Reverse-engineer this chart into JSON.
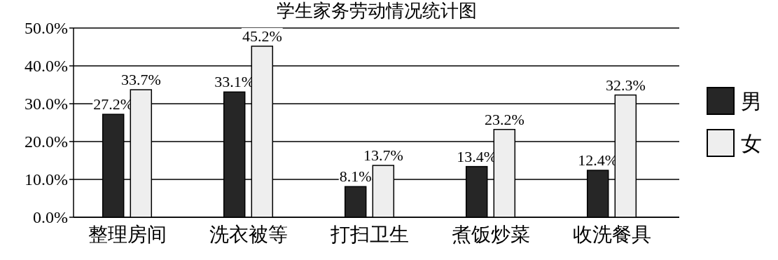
{
  "chart_data": {
    "type": "bar",
    "title": "学生家务劳动情况统计图",
    "categories": [
      "整理房间",
      "洗衣被等",
      "打扫卫生",
      "煮饭炒菜",
      "收洗餐具"
    ],
    "series": [
      {
        "name": "男",
        "color": "#262626",
        "values": [
          27.2,
          33.1,
          8.1,
          13.4,
          12.4
        ],
        "value_labels": [
          "27.2%",
          "33.1%",
          "8.1%",
          "13.4%",
          "12.4%"
        ]
      },
      {
        "name": "女",
        "color": "#eeeeee",
        "values": [
          33.7,
          45.2,
          13.7,
          23.2,
          32.3
        ],
        "value_labels": [
          "33.7%",
          "45.2%",
          "13.7%",
          "23.2%",
          "32.3%"
        ]
      }
    ],
    "ylim": [
      0,
      50
    ],
    "yticks": [
      {
        "value": 0,
        "label": "0.0%"
      },
      {
        "value": 10,
        "label": "10.0%"
      },
      {
        "value": 20,
        "label": "20.0%"
      },
      {
        "value": 30,
        "label": "30.0%"
      },
      {
        "value": 40,
        "label": "40.0%"
      },
      {
        "value": 50,
        "label": "50.0%"
      }
    ],
    "grid": "y",
    "legend": "right"
  }
}
